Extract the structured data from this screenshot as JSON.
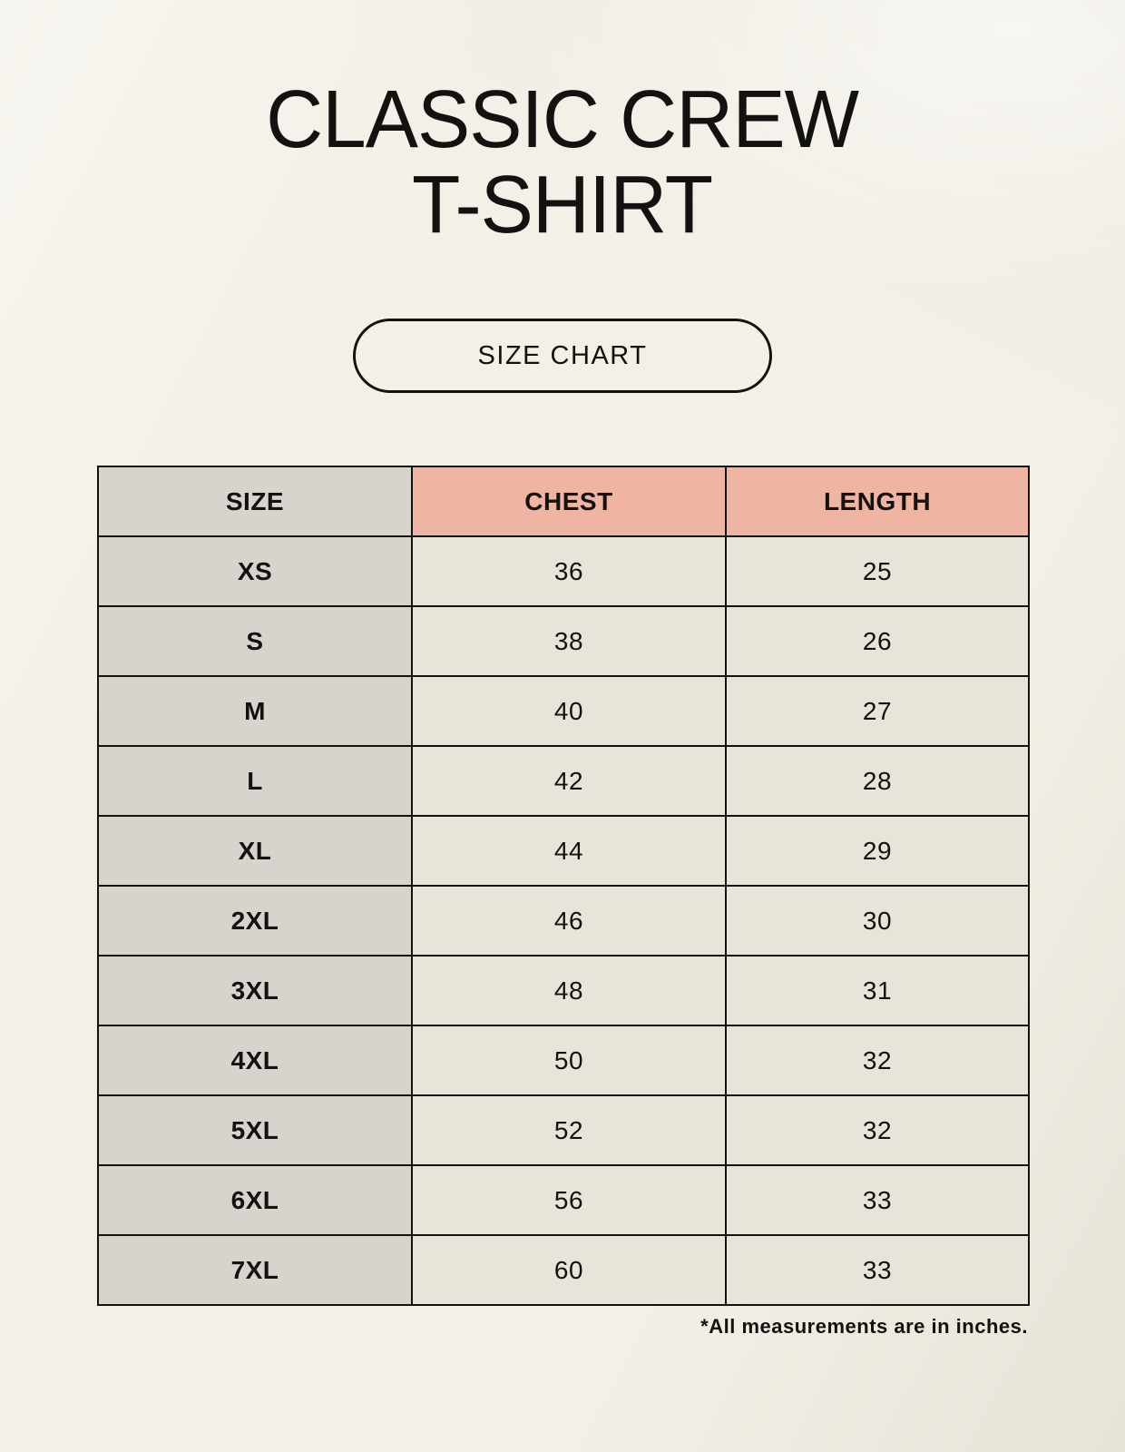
{
  "page": {
    "title_line1": "CLASSIC CREW",
    "title_line2": "T-SHIRT",
    "size_chart_button": "SIZE CHART",
    "footnote": "*All measurements are in inches."
  },
  "table": {
    "columns": [
      "SIZE",
      "CHEST",
      "LENGTH"
    ],
    "rows": [
      {
        "size": "XS",
        "chest": "36",
        "length": "25"
      },
      {
        "size": "S",
        "chest": "38",
        "length": "26"
      },
      {
        "size": "M",
        "chest": "40",
        "length": "27"
      },
      {
        "size": "L",
        "chest": "42",
        "length": "28"
      },
      {
        "size": "XL",
        "chest": "44",
        "length": "29"
      },
      {
        "size": "2XL",
        "chest": "46",
        "length": "30"
      },
      {
        "size": "3XL",
        "chest": "48",
        "length": "31"
      },
      {
        "size": "4XL",
        "chest": "50",
        "length": "32"
      },
      {
        "size": "5XL",
        "chest": "52",
        "length": "32"
      },
      {
        "size": "6XL",
        "chest": "56",
        "length": "33"
      },
      {
        "size": "7XL",
        "chest": "60",
        "length": "33"
      }
    ],
    "units_note": "inches"
  },
  "colors": {
    "background": "#f3f0e7",
    "header_accent": "#f0b5a2",
    "size_column_bg": "#d9d3ce",
    "data_cell_bg": "#e9e4d9",
    "border": "#131210",
    "text": "#131210"
  }
}
